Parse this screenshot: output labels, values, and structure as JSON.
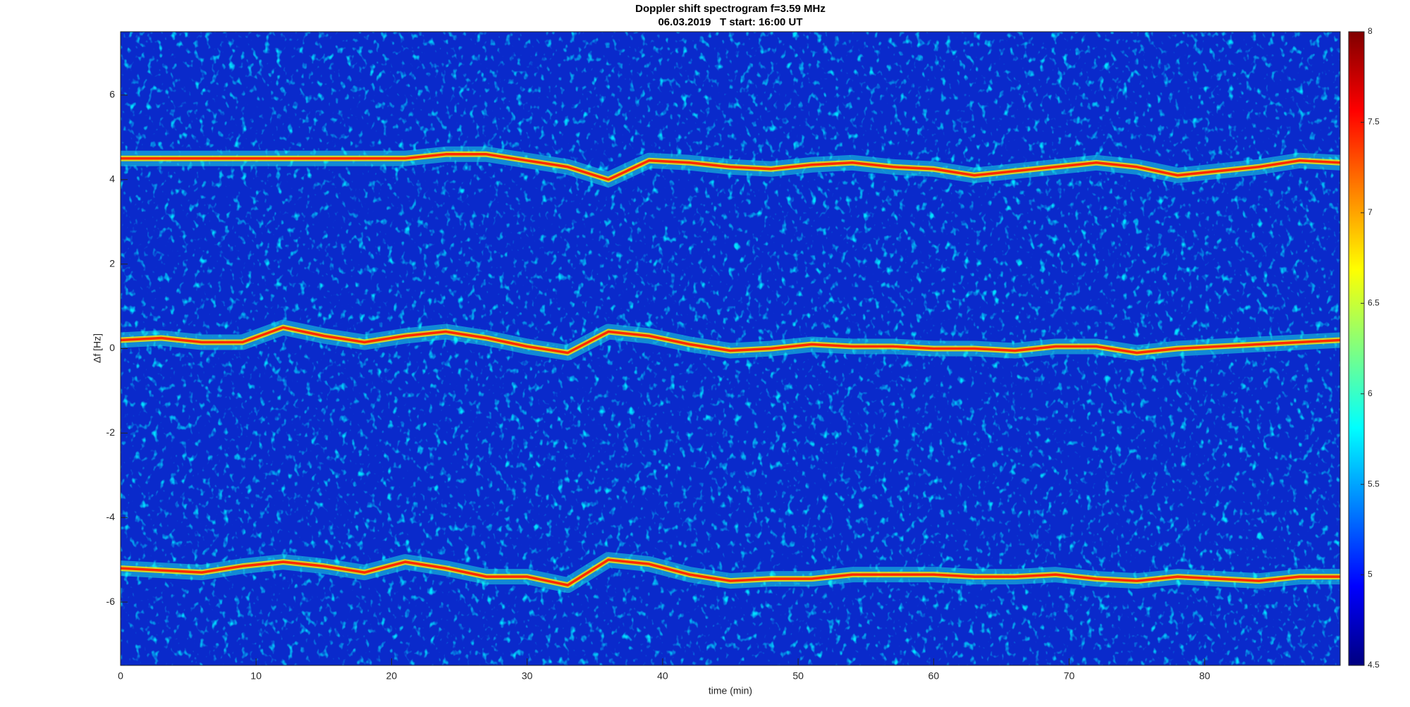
{
  "chart_data": {
    "type": "spectrogram",
    "title": "Doppler shift spectrogram f=3.59 MHz",
    "subtitle": "06.03.2019   T start: 16:00 UT",
    "x_label": "time (min)",
    "y_label": "Δf [Hz]",
    "xlim": [
      0,
      90
    ],
    "ylim": [
      -7.5,
      7.5
    ],
    "xticks": [
      0,
      10,
      20,
      30,
      40,
      50,
      60,
      70,
      80
    ],
    "yticks": [
      -6,
      -4,
      -2,
      0,
      2,
      4,
      6
    ],
    "clim": [
      4.5,
      8
    ],
    "cticks": [
      4.5,
      5,
      5.5,
      6,
      6.5,
      7,
      7.5,
      8
    ],
    "colormap": "jet",
    "background_color": "#0a2acb",
    "trace_color": "#ff2a00",
    "x": [
      0,
      3,
      6,
      9,
      12,
      15,
      18,
      21,
      24,
      27,
      30,
      33,
      36,
      39,
      42,
      45,
      48,
      51,
      54,
      57,
      60,
      63,
      66,
      69,
      72,
      75,
      78,
      81,
      84,
      87,
      90
    ],
    "traces": [
      [
        4.5,
        4.5,
        4.5,
        4.5,
        4.5,
        4.5,
        4.5,
        4.5,
        4.6,
        4.6,
        4.45,
        4.3,
        4.0,
        4.45,
        4.4,
        4.3,
        4.25,
        4.35,
        4.4,
        4.3,
        4.25,
        4.1,
        4.2,
        4.3,
        4.4,
        4.3,
        4.1,
        4.2,
        4.3,
        4.45,
        4.4
      ],
      [
        0.2,
        0.25,
        0.15,
        0.15,
        0.5,
        0.3,
        0.15,
        0.3,
        0.4,
        0.25,
        0.05,
        -0.1,
        0.4,
        0.3,
        0.1,
        -0.05,
        0.0,
        0.1,
        0.05,
        0.05,
        0.0,
        0.0,
        -0.05,
        0.05,
        0.05,
        -0.1,
        0.0,
        0.05,
        0.1,
        0.15,
        0.2
      ],
      [
        -5.2,
        -5.25,
        -5.3,
        -5.15,
        -5.05,
        -5.15,
        -5.3,
        -5.05,
        -5.2,
        -5.4,
        -5.4,
        -5.6,
        -5.0,
        -5.1,
        -5.35,
        -5.5,
        -5.45,
        -5.45,
        -5.35,
        -5.35,
        -5.35,
        -5.4,
        -5.4,
        -5.35,
        -5.45,
        -5.5,
        -5.4,
        -5.45,
        -5.5,
        -5.4,
        -5.4
      ]
    ]
  }
}
